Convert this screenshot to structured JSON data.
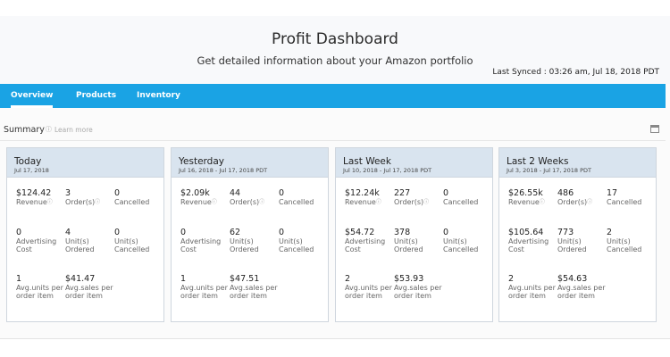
{
  "page": {
    "title": "Profit Dashboard",
    "subtitle": "Get detailed information about your Amazon portfolio",
    "last_synced": "Last Synced : 03:26 am, Jul 18, 2018 PDT"
  },
  "tabs": [
    {
      "label": "Overview",
      "active": true
    },
    {
      "label": "Products",
      "active": false
    },
    {
      "label": "Inventory",
      "active": false
    }
  ],
  "summary": {
    "label": "Summary",
    "info_icon": "info-icon",
    "learn_more": "Learn more",
    "calendar_icon": "calendar-icon"
  },
  "colors": {
    "tab_bar": "#1aa3e4",
    "card_header": "#d9e4ef"
  },
  "cards": [
    {
      "title": "Today",
      "date": "Jul 17, 2018",
      "metrics": [
        {
          "value": "$124.42",
          "label": "Revenue",
          "info": true
        },
        {
          "value": "3",
          "label": "Order(s)",
          "info": true
        },
        {
          "value": "0",
          "label": "Cancelled",
          "info": false
        },
        {
          "value": "0",
          "label": "Advertising Cost",
          "info": false
        },
        {
          "value": "4",
          "label": "Unit(s) Ordered",
          "info": false
        },
        {
          "value": "0",
          "label": "Unit(s) Cancelled",
          "info": false
        },
        {
          "value": "1",
          "label": "Avg.units per order item",
          "info": false
        },
        {
          "value": "$41.47",
          "label": "Avg.sales per order item",
          "info": false
        }
      ]
    },
    {
      "title": "Yesterday",
      "date": "Jul 16, 2018 - Jul 17, 2018 PDT",
      "metrics": [
        {
          "value": "$2.09k",
          "label": "Revenue",
          "info": true
        },
        {
          "value": "44",
          "label": "Order(s)",
          "info": true
        },
        {
          "value": "0",
          "label": "Cancelled",
          "info": false
        },
        {
          "value": "0",
          "label": "Advertising Cost",
          "info": false
        },
        {
          "value": "62",
          "label": "Unit(s) Ordered",
          "info": false
        },
        {
          "value": "0",
          "label": "Unit(s) Cancelled",
          "info": false
        },
        {
          "value": "1",
          "label": "Avg.units per order item",
          "info": false
        },
        {
          "value": "$47.51",
          "label": "Avg.sales per order item",
          "info": false
        }
      ]
    },
    {
      "title": "Last Week",
      "date": "Jul 10, 2018 - Jul 17, 2018 PDT",
      "metrics": [
        {
          "value": "$12.24k",
          "label": "Revenue",
          "info": true
        },
        {
          "value": "227",
          "label": "Order(s)",
          "info": true
        },
        {
          "value": "0",
          "label": "Cancelled",
          "info": false
        },
        {
          "value": "$54.72",
          "label": "Advertising Cost",
          "info": false
        },
        {
          "value": "378",
          "label": "Unit(s) Ordered",
          "info": false
        },
        {
          "value": "0",
          "label": "Unit(s) Cancelled",
          "info": false
        },
        {
          "value": "2",
          "label": "Avg.units per order item",
          "info": false
        },
        {
          "value": "$53.93",
          "label": "Avg.sales per order item",
          "info": false
        }
      ]
    },
    {
      "title": "Last 2 Weeks",
      "date": "Jul 3, 2018 - Jul 17, 2018 PDT",
      "metrics": [
        {
          "value": "$26.55k",
          "label": "Revenue",
          "info": true
        },
        {
          "value": "486",
          "label": "Order(s)",
          "info": true
        },
        {
          "value": "17",
          "label": "Cancelled",
          "info": false
        },
        {
          "value": "$105.64",
          "label": "Advertising Cost",
          "info": false
        },
        {
          "value": "773",
          "label": "Unit(s) Ordered",
          "info": false
        },
        {
          "value": "2",
          "label": "Unit(s) Cancelled",
          "info": false
        },
        {
          "value": "2",
          "label": "Avg.units per order item",
          "info": false
        },
        {
          "value": "$54.63",
          "label": "Avg.sales per order item",
          "info": false
        }
      ]
    }
  ]
}
